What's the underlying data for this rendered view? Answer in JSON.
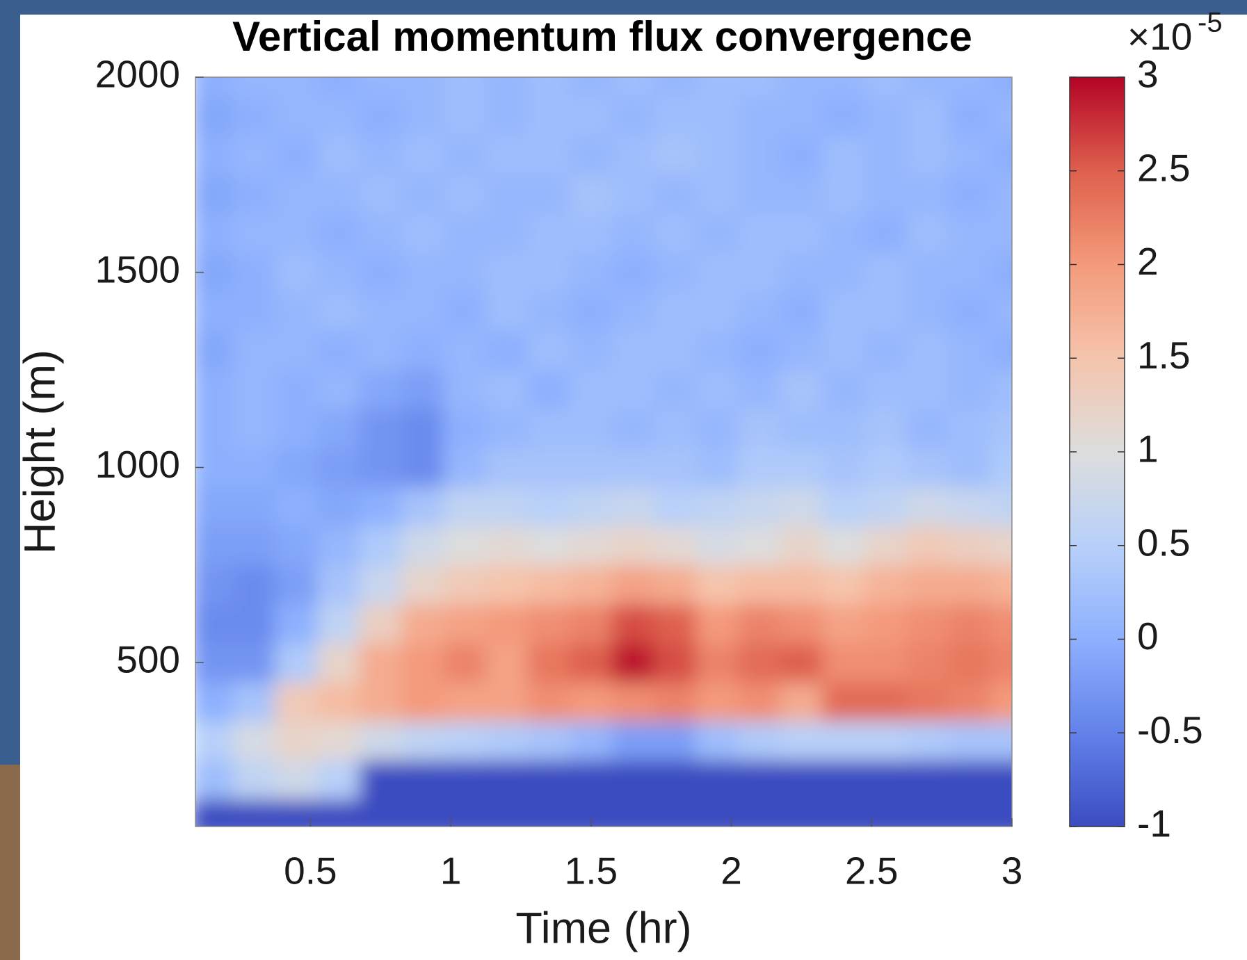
{
  "chart_data": {
    "type": "heatmap",
    "title": "Vertical momentum flux convergence",
    "xlabel": "Time (hr)",
    "ylabel": "Height (m)",
    "x": [
      0.15,
      0.3,
      0.45,
      0.6,
      0.75,
      0.9,
      1.05,
      1.2,
      1.35,
      1.5,
      1.65,
      1.8,
      1.95,
      2.1,
      2.25,
      2.4,
      2.55,
      2.7,
      2.85,
      3.0
    ],
    "y": [
      100,
      200,
      300,
      400,
      500,
      600,
      700,
      800,
      900,
      1000,
      1100,
      1200,
      1300,
      1400,
      1500,
      1600,
      1700,
      1800,
      1900,
      2000
    ],
    "z": [
      [
        -1,
        -1,
        -1,
        -1,
        -1,
        -1,
        -1,
        -1,
        -1,
        -1,
        -1,
        -1,
        -1,
        -1,
        -1,
        -1,
        -1,
        -1,
        -1,
        -1
      ],
      [
        0.2,
        0.6,
        0.8,
        0.5,
        -1,
        -1,
        -1,
        -1,
        -1,
        -1,
        -1,
        -1,
        -1,
        -1,
        -1,
        -1,
        -1,
        -1,
        -1,
        -1
      ],
      [
        0.5,
        0.9,
        1.2,
        1.1,
        0.8,
        0.6,
        0.5,
        0.4,
        0.3,
        0.1,
        -0.2,
        -0.2,
        0.2,
        0.4,
        0.5,
        0.5,
        0.5,
        0.4,
        0.3,
        0.3
      ],
      [
        0.0,
        0.3,
        1.4,
        1.6,
        1.8,
        2.0,
        1.9,
        1.9,
        2.1,
        2.0,
        2.1,
        2.2,
        2.0,
        2.1,
        1.8,
        2.4,
        2.4,
        2.3,
        2.2,
        2.0
      ],
      [
        -0.3,
        -0.3,
        0.4,
        1.2,
        1.8,
        2.0,
        2.2,
        1.9,
        2.3,
        2.5,
        2.9,
        2.6,
        2.2,
        2.4,
        2.5,
        2.1,
        2.1,
        2.2,
        2.3,
        2.2
      ],
      [
        -0.4,
        -0.4,
        0.0,
        0.6,
        1.3,
        1.8,
        1.9,
        2.0,
        2.1,
        2.2,
        2.6,
        2.5,
        2.0,
        2.2,
        2.1,
        1.9,
        2.0,
        2.1,
        2.2,
        2.1
      ],
      [
        -0.3,
        -0.4,
        -0.2,
        0.3,
        0.7,
        1.2,
        1.4,
        1.5,
        1.6,
        1.7,
        1.9,
        1.8,
        1.5,
        1.6,
        1.6,
        1.5,
        1.7,
        1.8,
        1.8,
        1.7
      ],
      [
        -0.2,
        -0.2,
        -0.1,
        0.1,
        0.4,
        0.8,
        1.0,
        1.1,
        1.0,
        1.1,
        1.2,
        1.1,
        0.9,
        1.0,
        1.2,
        1.0,
        1.2,
        1.4,
        1.3,
        1.2
      ],
      [
        -0.1,
        -0.1,
        0.0,
        -0.1,
        0.0,
        0.3,
        0.6,
        0.6,
        0.5,
        0.6,
        0.7,
        0.5,
        0.6,
        0.7,
        0.8,
        0.5,
        0.6,
        0.8,
        0.7,
        0.6
      ],
      [
        0.0,
        0.0,
        -0.1,
        -0.2,
        -0.3,
        -0.4,
        0.1,
        0.3,
        0.3,
        0.3,
        0.3,
        0.3,
        0.2,
        0.4,
        0.4,
        0.3,
        0.4,
        0.3,
        0.2,
        0.4
      ],
      [
        0.0,
        0.1,
        0.0,
        -0.1,
        -0.3,
        -0.4,
        0.0,
        0.1,
        0.2,
        0.2,
        0.1,
        0.2,
        0.1,
        0.3,
        0.2,
        0.2,
        0.3,
        0.1,
        0.2,
        0.3
      ],
      [
        0.0,
        0.1,
        0.0,
        0.1,
        -0.1,
        -0.2,
        0.1,
        0.2,
        0.0,
        0.2,
        0.2,
        0.1,
        0.2,
        0.1,
        0.3,
        0.1,
        0.2,
        0.2,
        0.1,
        0.2
      ],
      [
        -0.1,
        0.1,
        0.1,
        0.0,
        0.1,
        0.0,
        0.1,
        0.0,
        0.2,
        0.1,
        0.2,
        0.2,
        0.1,
        0.0,
        0.1,
        0.2,
        0.1,
        0.2,
        0.1,
        0.0
      ],
      [
        0.0,
        0.0,
        0.1,
        0.2,
        0.1,
        0.1,
        0.0,
        0.2,
        0.1,
        0.0,
        0.1,
        0.2,
        0.2,
        0.1,
        0.0,
        0.2,
        0.2,
        0.1,
        0.0,
        0.1
      ],
      [
        -0.1,
        0.0,
        0.2,
        0.1,
        0.0,
        0.1,
        0.1,
        0.2,
        0.2,
        0.1,
        0.0,
        0.1,
        0.2,
        0.2,
        0.1,
        0.1,
        0.2,
        0.1,
        0.1,
        0.0
      ],
      [
        0.0,
        0.1,
        0.1,
        0.0,
        0.1,
        0.2,
        0.1,
        0.1,
        0.2,
        0.2,
        0.1,
        0.2,
        0.1,
        0.2,
        0.2,
        0.1,
        0.0,
        0.2,
        0.1,
        0.1
      ],
      [
        -0.1,
        0.0,
        0.1,
        0.1,
        0.2,
        0.1,
        0.2,
        0.1,
        0.1,
        0.3,
        0.2,
        0.1,
        0.2,
        0.1,
        0.1,
        0.2,
        0.1,
        0.1,
        0.0,
        0.1
      ],
      [
        0.0,
        0.1,
        0.0,
        0.2,
        0.1,
        0.2,
        0.1,
        0.2,
        0.2,
        0.1,
        0.2,
        0.3,
        0.2,
        0.1,
        0.0,
        0.2,
        0.1,
        0.2,
        0.1,
        0.0
      ],
      [
        -0.1,
        0.0,
        0.1,
        0.1,
        0.0,
        0.1,
        0.2,
        0.1,
        0.2,
        0.2,
        0.1,
        0.2,
        0.2,
        0.1,
        0.1,
        0.0,
        0.1,
        0.2,
        0.0,
        0.1
      ],
      [
        0.0,
        0.1,
        0.1,
        0.0,
        0.1,
        0.1,
        0.2,
        0.1,
        0.2,
        0.1,
        0.2,
        0.1,
        0.2,
        0.2,
        0.1,
        0.1,
        0.2,
        0.1,
        0.1,
        0.0
      ]
    ],
    "xlim": [
      0.09,
      3
    ],
    "ylim": [
      80,
      2000
    ],
    "xticks": [
      0.5,
      1,
      1.5,
      2,
      2.5,
      3
    ],
    "yticks": [
      500,
      1000,
      1500,
      2000
    ],
    "clim": [
      -1,
      3
    ],
    "cticks": [
      -1,
      -0.5,
      0,
      0.5,
      1,
      1.5,
      2,
      2.5,
      3
    ],
    "colormap": [
      "#3b4cc0",
      "#6282ea",
      "#8db0fe",
      "#b8d0f9",
      "#dddddd",
      "#f5c4ac",
      "#f49a7b",
      "#de604d",
      "#b40426"
    ],
    "colorbar_multiplier": {
      "base": "×10",
      "exponent": "-5"
    }
  }
}
